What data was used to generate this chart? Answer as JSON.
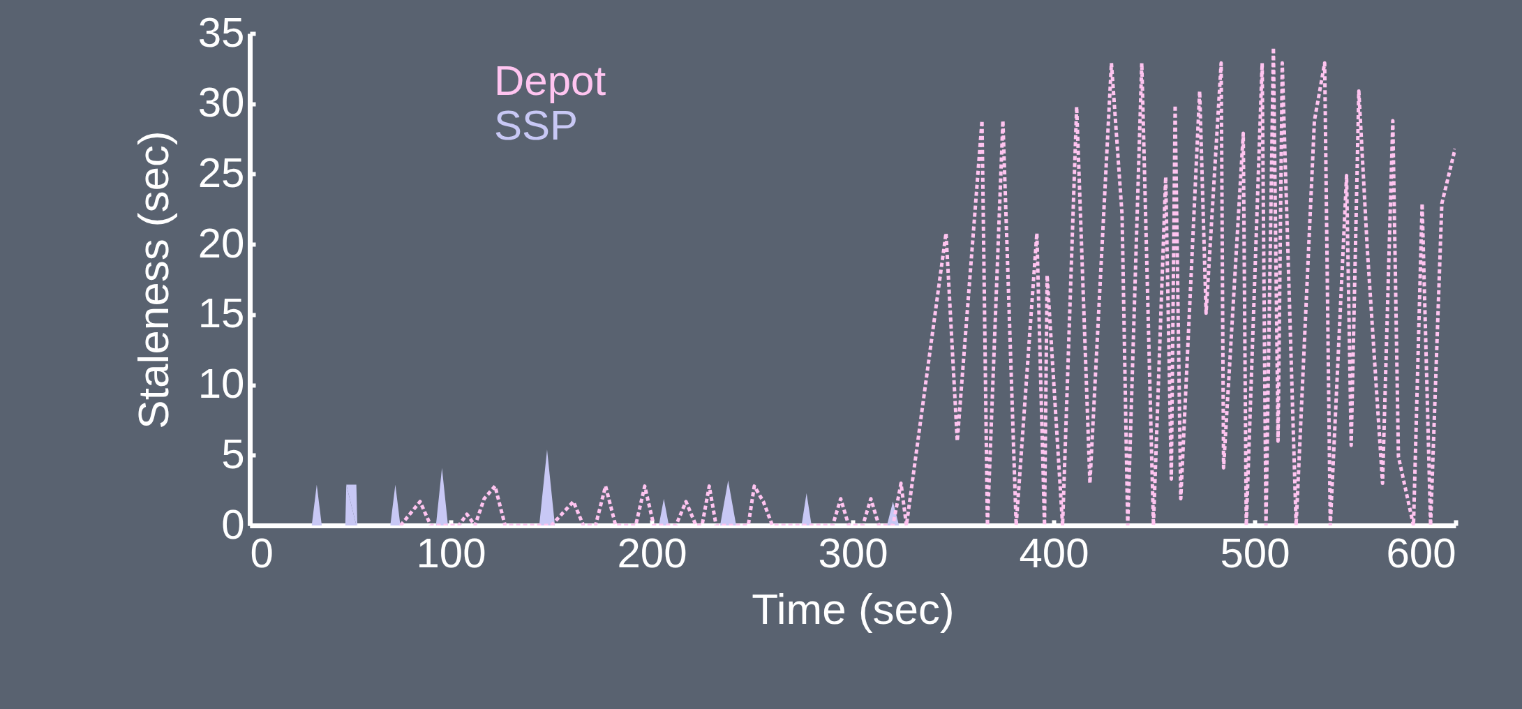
{
  "chart_data": {
    "type": "line",
    "xlabel": "Time (sec)",
    "ylabel": "Staleness (sec)",
    "xlim": [
      0,
      600
    ],
    "ylim": [
      0,
      35
    ],
    "xticks": [
      0,
      100,
      200,
      300,
      400,
      500,
      600
    ],
    "yticks": [
      0,
      5,
      10,
      15,
      20,
      25,
      30,
      35
    ],
    "grid": false,
    "legend": "top left",
    "line_style": "dashed",
    "series": [
      {
        "name": "Depot",
        "color": "#ffc4f0",
        "x": [
          75,
          84.7,
          90,
          104,
          108,
          112,
          116.6,
          122,
          127,
          150,
          161,
          166,
          172,
          177,
          182,
          192,
          196.5,
          201,
          212,
          217,
          222,
          225,
          228.6,
          232,
          248,
          251,
          255.5,
          260,
          290,
          294,
          298,
          305,
          309,
          313,
          320,
          324,
          326.7,
          346.4,
          352,
          364.3,
          367,
          374.7,
          381.3,
          391.6,
          395.4,
          396.7,
          404.4,
          411.4,
          418,
          428.7,
          434,
          436.8,
          443.8,
          449.6,
          455.7,
          458.5,
          460.4,
          463.2,
          472.6,
          475.8,
          483.3,
          484.5,
          494.3,
          495.8,
          503.7,
          505.6,
          509.3,
          511.6,
          513.7,
          520.6,
          529.7,
          534.8,
          537.6,
          545.7,
          548,
          551.8,
          556,
          563.6,
          568.7,
          571.5,
          579,
          583.3,
          587.5,
          593.1,
          599.7
        ],
        "values": [
          0,
          1.7,
          0,
          0,
          0.8,
          0,
          1.9,
          2.8,
          0,
          0,
          1.7,
          0,
          0,
          2.8,
          0,
          0,
          2.8,
          0,
          0,
          1.7,
          0,
          0,
          2.8,
          0,
          0,
          2.8,
          1.7,
          0,
          0,
          1.9,
          0,
          0,
          1.9,
          0,
          0,
          3,
          0,
          20.8,
          6,
          28.8,
          0,
          28.8,
          0,
          20.8,
          0,
          17.8,
          0,
          29.8,
          3,
          32.9,
          22.1,
          0,
          32.9,
          0,
          24.8,
          3.3,
          29.9,
          1.9,
          30.9,
          15.1,
          32.9,
          4.1,
          27.9,
          0,
          32.9,
          0,
          34,
          6,
          32.9,
          0,
          28.8,
          32.9,
          0,
          24.9,
          5.7,
          30.9,
          19.7,
          3,
          28.8,
          4.9,
          0,
          22.9,
          0,
          22.9,
          26.8
        ]
      },
      {
        "name": "SSP",
        "color": "#c8c8f5",
        "type": "area",
        "x": [
          0,
          30.8,
          33.3,
          35.8,
          47.5,
          48,
          53,
          53.5,
          69.9,
          72.4,
          74.9,
          92.6,
          95.6,
          98.6,
          144,
          147.9,
          151.8,
          203.5,
          206,
          208.5,
          234,
          238,
          242,
          274.5,
          277,
          279.5,
          317,
          320,
          323
        ],
        "values": [
          0,
          0,
          2.9,
          0,
          0,
          2.9,
          2.9,
          0,
          0,
          2.9,
          0,
          0,
          4.1,
          0,
          0,
          5.4,
          0,
          0,
          1.9,
          0,
          0,
          3.2,
          0,
          0,
          2.3,
          0,
          0,
          1.7,
          0
        ]
      }
    ]
  }
}
